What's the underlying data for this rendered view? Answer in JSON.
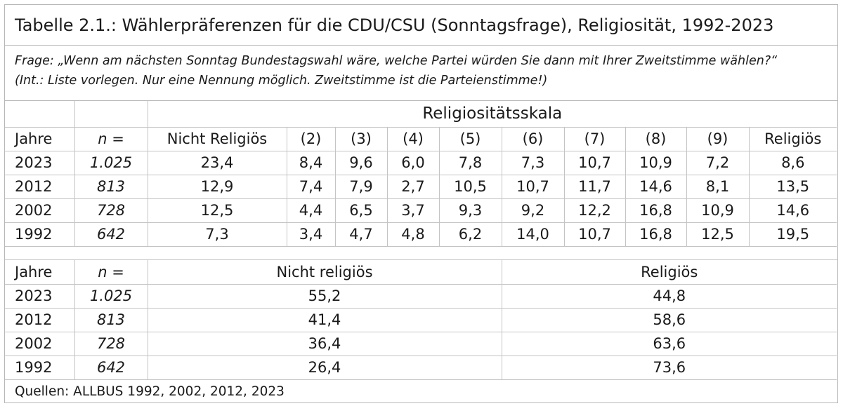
{
  "title": "Tabelle 2.1.: Wählerpräferenzen für die CDU/CSU (Sonntagsfrage), Religiosität, 1992-2023",
  "question": {
    "line1": "Frage: „Wenn am nächsten Sonntag Bundestagswahl wäre, welche Partei würden Sie dann mit Ihrer Zweitstimme wählen?“",
    "line2": "(Int.: Liste vorlegen. Nur eine Nennung möglich. Zweitstimme ist die Parteienstimme!)"
  },
  "table1": {
    "scale_label": "Religiositätsskala",
    "headers": [
      "Jahre",
      "n =",
      "Nicht Religiös",
      "(2)",
      "(3)",
      "(4)",
      "(5)",
      "(6)",
      "(7)",
      "(8)",
      "(9)",
      "Religiös"
    ],
    "rows": [
      [
        "2023",
        "1.025",
        "23,4",
        "8,4",
        "9,6",
        "6,0",
        "7,8",
        "7,3",
        "10,7",
        "10,9",
        "7,2",
        "8,6"
      ],
      [
        "2012",
        "813",
        "12,9",
        "7,4",
        "7,9",
        "2,7",
        "10,5",
        "10,7",
        "11,7",
        "14,6",
        "8,1",
        "13,5"
      ],
      [
        "2002",
        "728",
        "12,5",
        "4,4",
        "6,5",
        "3,7",
        "9,3",
        "9,2",
        "12,2",
        "16,8",
        "10,9",
        "14,6"
      ],
      [
        "1992",
        "642",
        "7,3",
        "3,4",
        "4,7",
        "4,8",
        "6,2",
        "14,0",
        "10,7",
        "16,8",
        "12,5",
        "19,5"
      ]
    ]
  },
  "table2": {
    "headers": [
      "Jahre",
      "n =",
      "Nicht religiös",
      "Religiös"
    ],
    "rows": [
      [
        "2023",
        "1.025",
        "55,2",
        "44,8"
      ],
      [
        "2012",
        "813",
        "41,4",
        "58,6"
      ],
      [
        "2002",
        "728",
        "36,4",
        "63,6"
      ],
      [
        "1992",
        "642",
        "26,4",
        "73,6"
      ]
    ]
  },
  "sources": "Quellen: ALLBUS 1992, 2002, 2012, 2023"
}
